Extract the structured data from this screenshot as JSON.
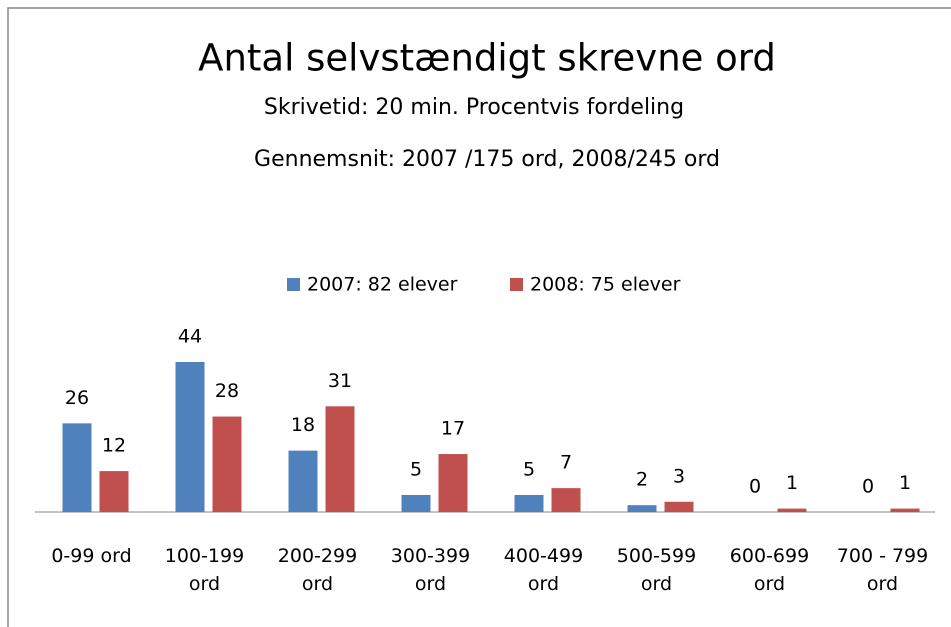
{
  "chart_data": {
    "type": "bar",
    "title": "Antal selvstændigt skrevne ord",
    "subtitle": "Skrivetid: 20 min. Procentvis fordeling",
    "subtitle2": "Gennemsnit: 2007 /175 ord, 2008/245 ord",
    "categories": [
      "0-99 ord",
      "100-199 ord",
      "200-299 ord",
      "300-399 ord",
      "400-499 ord",
      "500-599 ord",
      "600-699 ord",
      "700 - 799 ord"
    ],
    "series": [
      {
        "name": "2007: 82 elever",
        "color": "#4f81bd",
        "values": [
          26,
          44,
          18,
          5,
          5,
          2,
          0,
          0
        ]
      },
      {
        "name": "2008: 75 elever",
        "color": "#c0504d",
        "values": [
          12,
          28,
          31,
          17,
          7,
          3,
          1,
          1
        ]
      }
    ],
    "legend": "top"
  }
}
